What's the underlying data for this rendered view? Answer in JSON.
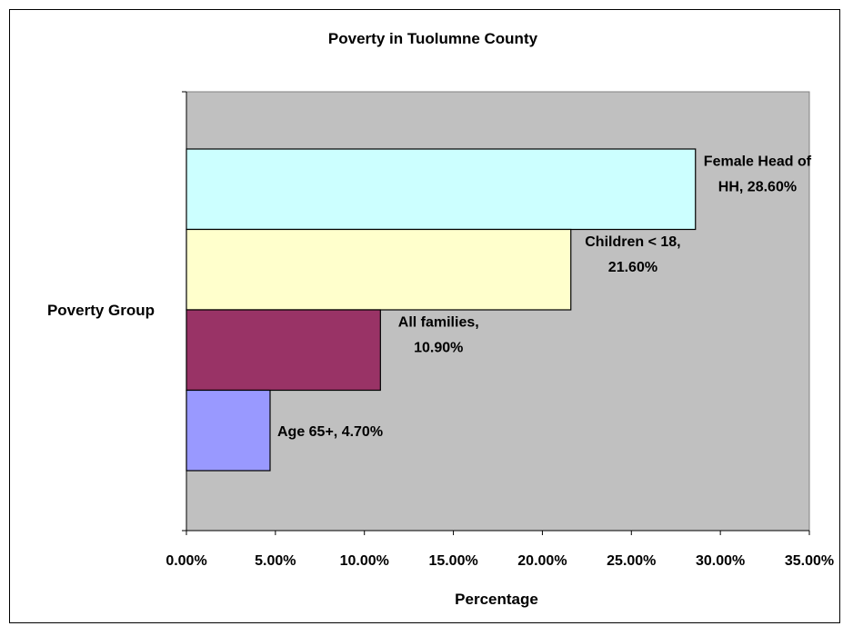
{
  "chart_data": {
    "type": "bar",
    "orientation": "horizontal",
    "title": "Poverty in Tuolumne County",
    "xlabel": "Percentage",
    "ylabel": "Poverty Group",
    "xlim": [
      0,
      35
    ],
    "x_ticks": [
      "0.00%",
      "5.00%",
      "10.00%",
      "15.00%",
      "20.00%",
      "25.00%",
      "30.00%",
      "35.00%"
    ],
    "grid": false,
    "legend": "none",
    "plot_background": "#c0c0c0",
    "series": [
      {
        "category": "Female Head of HH",
        "value": 28.6,
        "label_lines": [
          "Female Head of",
          "HH, 28.60%"
        ],
        "color": "#ccffff"
      },
      {
        "category": "Children < 18",
        "value": 21.6,
        "label_lines": [
          "Children < 18,",
          "21.60%"
        ],
        "color": "#ffffcc"
      },
      {
        "category": "All families",
        "value": 10.9,
        "label_lines": [
          "All families,",
          "10.90%"
        ],
        "color": "#993366"
      },
      {
        "category": "Age 65+",
        "value": 4.7,
        "label_lines": [
          "Age 65+, 4.70%"
        ],
        "color": "#9999ff"
      }
    ]
  }
}
